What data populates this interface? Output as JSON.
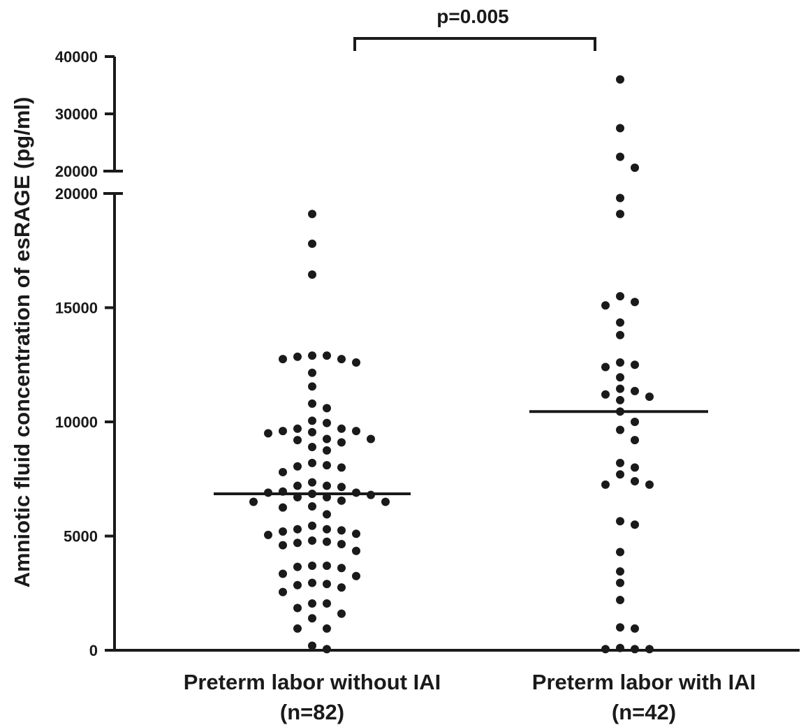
{
  "chart_data": {
    "type": "scatter",
    "ylabel": "Amniotic fluid concentration of esRAGE (pg/ml)",
    "y_axis_break": {
      "lower_range": [
        0,
        20000
      ],
      "upper_range": [
        20000,
        40000
      ]
    },
    "y_ticks_lower": [
      0,
      5000,
      10000,
      15000,
      20000
    ],
    "y_ticks_upper": [
      20000,
      30000,
      40000
    ],
    "y_tick_labels_lower": [
      "0",
      "5000",
      "10000",
      "15000",
      "20000"
    ],
    "y_tick_labels_upper": [
      "20000",
      "30000",
      "40000"
    ],
    "groups": [
      {
        "label_line1": "Preterm labor without IAI",
        "label_line2": "(n=82)",
        "median": 6850,
        "values": [
          19100,
          17800,
          16450,
          12900,
          12850,
          12750,
          12600,
          12750,
          12900,
          12150,
          11550,
          10800,
          10600,
          10050,
          9600,
          9550,
          9700,
          9700,
          9950,
          9500,
          9600,
          9250,
          9200,
          9250,
          9100,
          8900,
          8750,
          8100,
          8050,
          8200,
          8000,
          7800,
          7350,
          7200,
          7150,
          7200,
          6950,
          6900,
          6850,
          6800,
          6900,
          6700,
          6700,
          6550,
          6500,
          6500,
          6250,
          6300,
          5950,
          5450,
          5300,
          5300,
          5250,
          5200,
          5100,
          5050,
          4750,
          4700,
          4800,
          4650,
          4600,
          4350,
          3700,
          3650,
          3600,
          3700,
          3350,
          3250,
          2950,
          2900,
          2850,
          2750,
          2550,
          2050,
          2050,
          1850,
          1600,
          1400,
          950,
          950,
          200,
          50
        ]
      },
      {
        "label_line1": "Preterm labor with IAI",
        "label_line2": "(n=42)",
        "median": 10450,
        "values": [
          36000,
          27500,
          22500,
          20600,
          19800,
          19100,
          15500,
          15250,
          15100,
          14350,
          13800,
          12600,
          12500,
          12400,
          11950,
          11450,
          11350,
          11200,
          11100,
          10950,
          10450,
          10000,
          9650,
          9200,
          8200,
          8000,
          7700,
          7400,
          7250,
          7250,
          5650,
          5500,
          4300,
          3450,
          2950,
          2200,
          1000,
          950,
          100,
          50,
          50,
          50
        ]
      }
    ],
    "significance": {
      "label": "p=0.005",
      "between": [
        0,
        1
      ]
    }
  }
}
